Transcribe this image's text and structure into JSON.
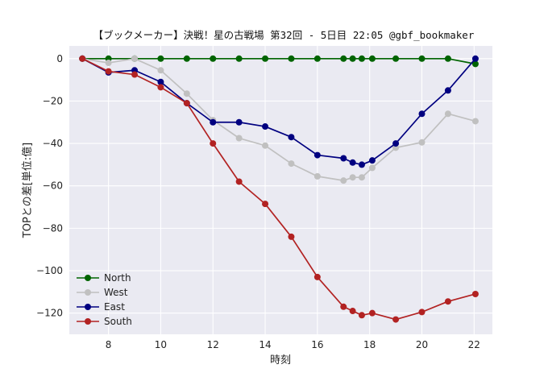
{
  "chart_data": {
    "type": "line",
    "title": "【ブックメーカー】決戦！星の古戦場 第32回 - 5日目 22:05 @gbf_bookmaker",
    "xlabel": "時刻",
    "ylabel": "TOPとの差[単位:億]",
    "xlim": [
      6.5,
      22.7
    ],
    "ylim": [
      -130,
      6
    ],
    "xticks": [
      8,
      10,
      12,
      14,
      16,
      18,
      20,
      22
    ],
    "yticks": [
      0,
      -20,
      -40,
      -60,
      -80,
      -100,
      -120
    ],
    "grid": true,
    "legend_position": "lower-left",
    "series": [
      {
        "name": "North",
        "color": "#006400",
        "x": [
          7,
          8,
          9,
          10,
          11,
          12,
          13,
          14,
          15,
          16,
          17,
          17.35,
          17.7,
          18.1,
          19,
          20,
          21,
          22.05
        ],
        "values": [
          0,
          0,
          0,
          0,
          0,
          0,
          0,
          0,
          0,
          0,
          0,
          0,
          0,
          0,
          0,
          0,
          0,
          -2.5
        ]
      },
      {
        "name": "West",
        "color": "#c0c0c0",
        "x": [
          7,
          8,
          9,
          10,
          11,
          12,
          13,
          14,
          15,
          16,
          17,
          17.35,
          17.7,
          18.1,
          19,
          20,
          21,
          22.05
        ],
        "values": [
          0,
          -2,
          0,
          -5.5,
          -16.5,
          -29,
          -37.5,
          -41,
          -49.5,
          -55.5,
          -57.5,
          -56,
          -56,
          -51.5,
          -42,
          -39.5,
          -26,
          -29.5
        ]
      },
      {
        "name": "East",
        "color": "#000080",
        "x": [
          7,
          8,
          9,
          10,
          11,
          12,
          13,
          14,
          15,
          16,
          17,
          17.35,
          17.7,
          18.1,
          19,
          20,
          21,
          22.05
        ],
        "values": [
          0,
          -6.5,
          -5.5,
          -11,
          -21,
          -30,
          -30,
          -32,
          -37,
          -45.5,
          -47,
          -49,
          -50,
          -48,
          -40,
          -26,
          -15,
          0
        ]
      },
      {
        "name": "South",
        "color": "#b22222",
        "x": [
          7,
          8,
          9,
          10,
          11,
          12,
          13,
          14,
          15,
          16,
          17,
          17.35,
          17.7,
          18.1,
          19,
          20,
          21,
          22.05
        ],
        "values": [
          0,
          -6,
          -7.5,
          -13.5,
          -21,
          -40,
          -58,
          -68.5,
          -84,
          -103,
          -117,
          -119,
          -121,
          -120,
          -123,
          -119.5,
          -114.5,
          -111
        ]
      }
    ]
  }
}
